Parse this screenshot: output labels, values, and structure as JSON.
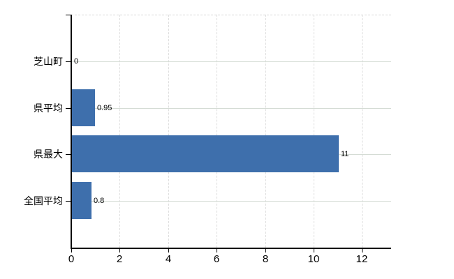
{
  "chart_data": {
    "type": "bar",
    "orientation": "horizontal",
    "title": "",
    "xlabel": "",
    "ylabel": "",
    "categories": [
      "芝山町",
      "県平均",
      "県最大",
      "全国平均"
    ],
    "values": [
      0,
      0.95,
      11,
      0.8
    ],
    "value_labels": [
      "0",
      "0.95",
      "11",
      "0.8"
    ],
    "x_tick_labels": [
      "0",
      "2",
      "4",
      "6",
      "8",
      "10",
      "12"
    ],
    "x_tick_values": [
      0,
      2,
      4,
      6,
      8,
      10,
      12
    ],
    "xlim": [
      0,
      13.2
    ],
    "legend_position": "none",
    "grid": {
      "vertical_style": "dashed",
      "horizontal_style": "solid"
    },
    "colors": {
      "bar": "#3e6fac",
      "axis": "#000000",
      "grid_vertical": "#dcdcdc",
      "grid_horizontal": "#d5dcd5",
      "plot_top_border": "#d8d8d8",
      "text": "#000000",
      "background": "#ffffff"
    }
  }
}
